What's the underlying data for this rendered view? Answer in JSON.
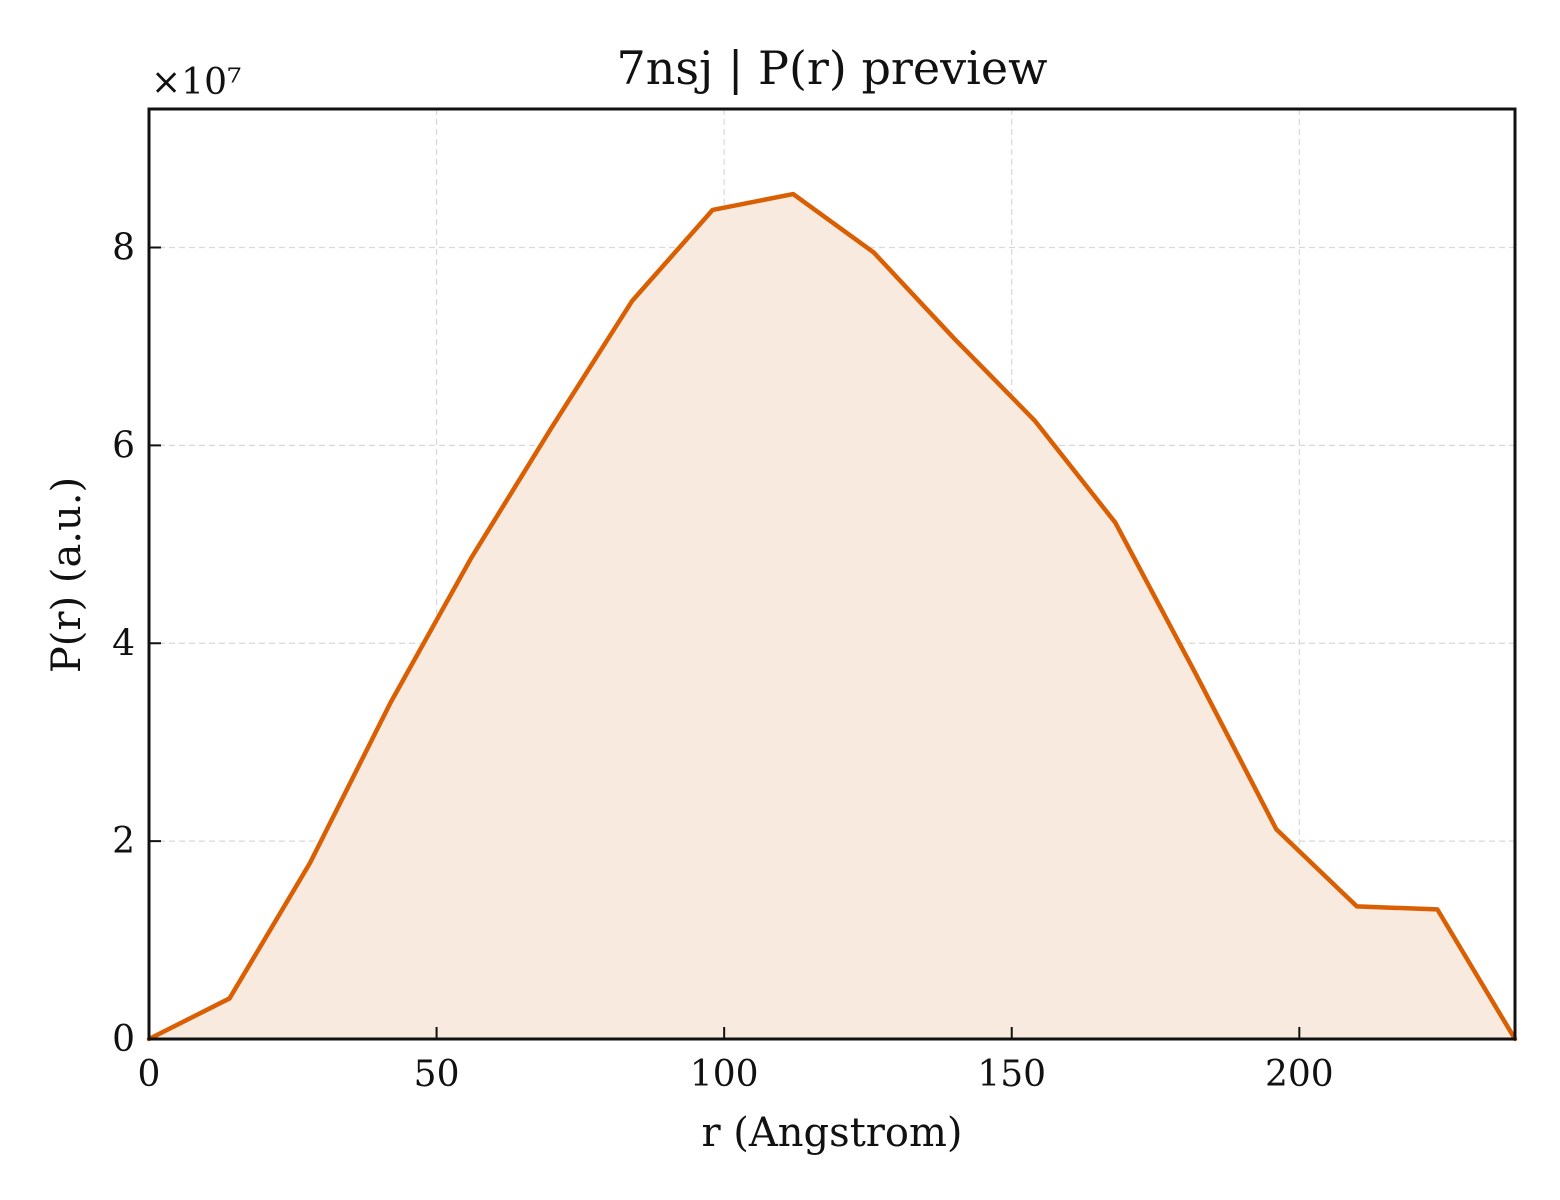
{
  "chart_data": {
    "type": "area",
    "title": "7nsj | P(r) preview",
    "xlabel": "r (Angstrom)",
    "ylabel": "P(r) (a.u.)",
    "y_multiplier_label": "×10⁷",
    "x_ticks": [
      "0",
      "50",
      "100",
      "150",
      "200"
    ],
    "y_ticks": [
      "0",
      "2",
      "4",
      "6",
      "8"
    ],
    "xlim": [
      0,
      237.5
    ],
    "ylim": [
      0,
      9.4
    ],
    "grid": true,
    "line_color": "#d95f02",
    "fill_color": "#f8eadf",
    "series": [
      {
        "x": [
          0,
          14,
          28,
          42,
          56,
          70,
          84,
          98,
          112,
          126,
          140,
          154,
          168,
          182,
          196,
          210,
          224,
          237.5
        ],
        "values": [
          0.0,
          0.41,
          1.78,
          3.4,
          4.86,
          6.18,
          7.46,
          8.38,
          8.54,
          7.95,
          7.08,
          6.25,
          5.22,
          3.69,
          2.12,
          1.34,
          1.31,
          0.0
        ]
      }
    ]
  }
}
